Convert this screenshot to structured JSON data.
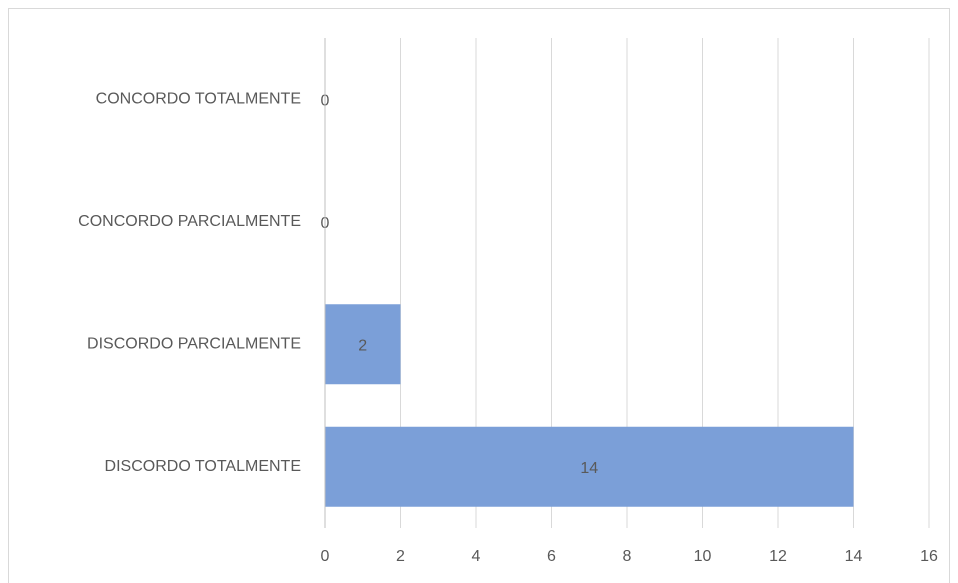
{
  "chart_data": {
    "type": "barh",
    "categories": [
      "CONCORDO TOTALMENTE",
      "CONCORDO PARCIALMENTE",
      "DISCORDO PARCIALMENTE",
      "DISCORDO TOTALMENTE"
    ],
    "values": [
      0,
      0,
      2,
      14
    ],
    "color": "#7b9fd8",
    "xlim": [
      0,
      16
    ],
    "xticks": [
      0,
      2,
      4,
      6,
      8,
      10,
      12,
      14,
      16
    ],
    "grid": true
  }
}
